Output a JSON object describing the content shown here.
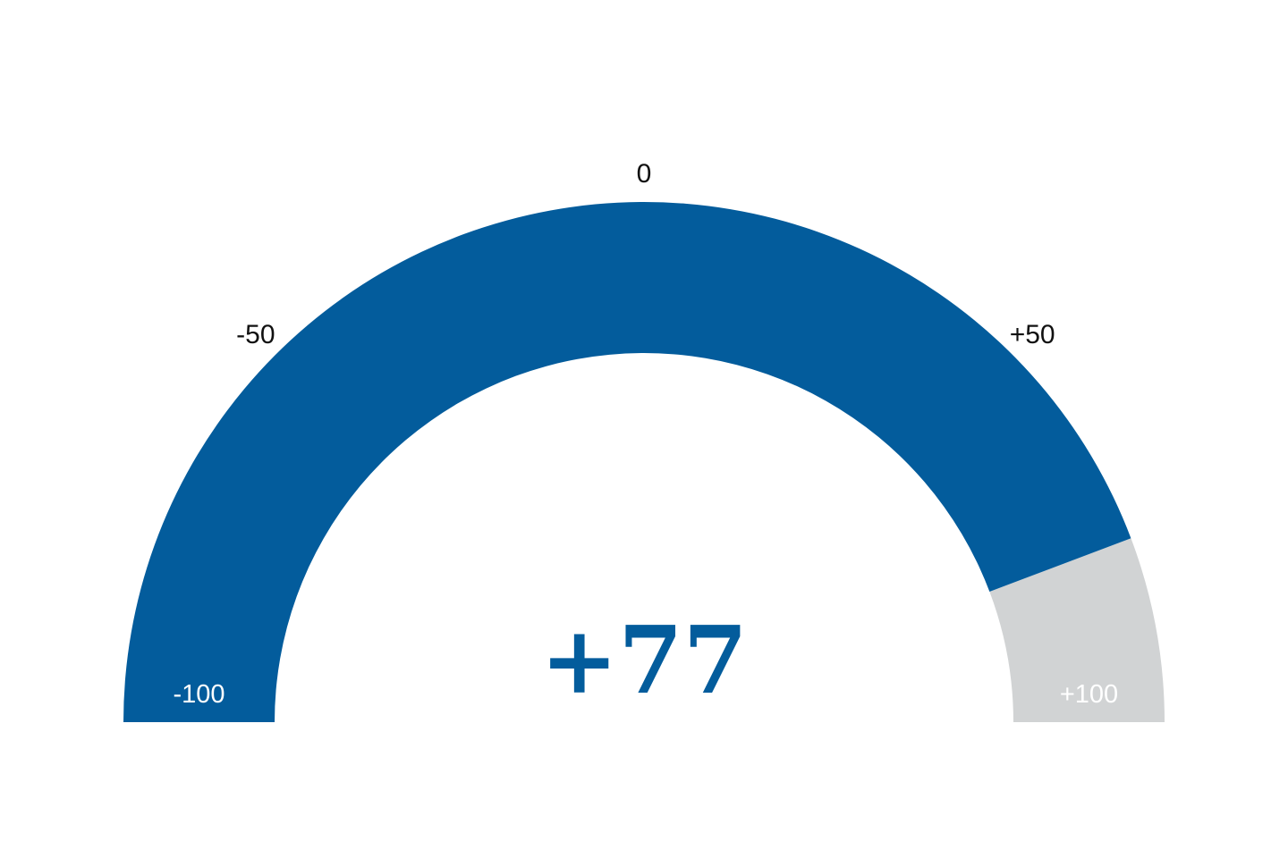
{
  "chart_data": {
    "type": "gauge",
    "min": -100,
    "max": 100,
    "value": 77,
    "value_label": "+77",
    "tick_labels": [
      {
        "value": -100,
        "text": "-100"
      },
      {
        "value": -50,
        "text": "-50"
      },
      {
        "value": 0,
        "text": "0"
      },
      {
        "value": 50,
        "text": "+50"
      },
      {
        "value": 100,
        "text": "+100"
      }
    ],
    "colors": {
      "fill": "#035C9C",
      "remainder": "#D1D3D4",
      "value_text": "#035C9C",
      "tick_text": "#111111",
      "end_label_text": "#FFFFFF"
    }
  }
}
